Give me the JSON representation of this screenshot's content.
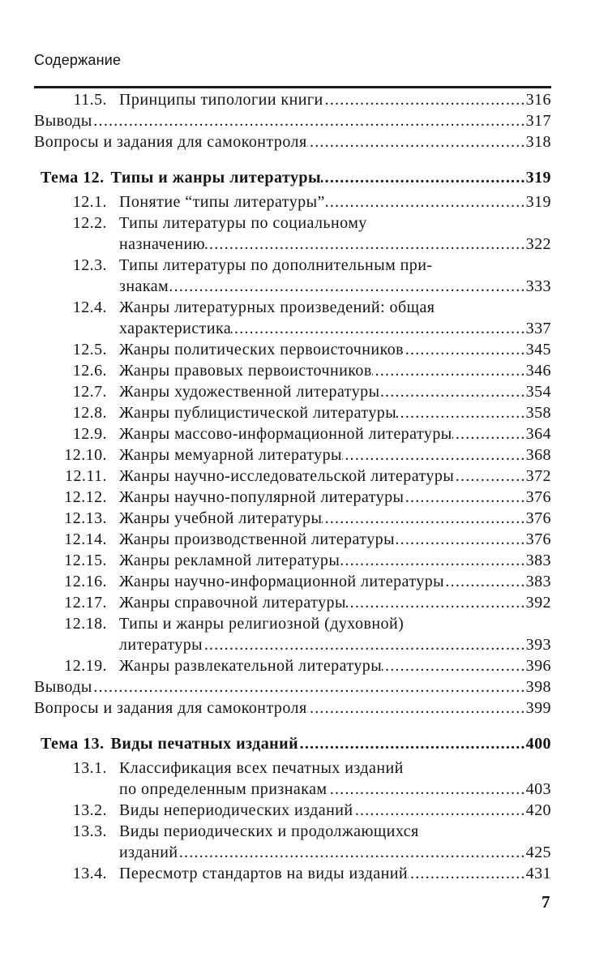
{
  "header": {
    "title": "Содержание"
  },
  "entries": [
    {
      "type": "section",
      "num": "11.5.",
      "lines": [
        "Принципы типологии книги"
      ],
      "page": "316"
    },
    {
      "type": "plain",
      "num": "",
      "lines": [
        "Выводы"
      ],
      "page": "317"
    },
    {
      "type": "plain",
      "num": "",
      "lines": [
        "Вопросы и задания для самоконтроля"
      ],
      "page": "318"
    },
    {
      "type": "theme",
      "num": "Тема 12.",
      "lines": [
        "Типы и жанры литературы"
      ],
      "page": "319"
    },
    {
      "type": "section",
      "num": "12.1.",
      "lines": [
        "Понятие “типы литературы”"
      ],
      "page": "319"
    },
    {
      "type": "section",
      "num": "12.2.",
      "lines": [
        "Типы литературы по социальному",
        "назначению"
      ],
      "page": "322"
    },
    {
      "type": "section",
      "num": "12.3.",
      "lines": [
        "Типы литературы по дополнительным при-",
        "знакам"
      ],
      "page": "333"
    },
    {
      "type": "section",
      "num": "12.4.",
      "lines": [
        "Жанры литературных произведений: общая",
        "характеристика"
      ],
      "page": "337"
    },
    {
      "type": "section",
      "num": "12.5.",
      "lines": [
        "Жанры политических первоисточников"
      ],
      "page": "345"
    },
    {
      "type": "section",
      "num": "12.6.",
      "lines": [
        "Жанры правовых первоисточников"
      ],
      "page": "346"
    },
    {
      "type": "section",
      "num": "12.7.",
      "lines": [
        "Жанры художественной литературы"
      ],
      "page": "354"
    },
    {
      "type": "section",
      "num": "12.8.",
      "lines": [
        "Жанры публицистической литературы"
      ],
      "page": "358"
    },
    {
      "type": "section",
      "num": "12.9.",
      "lines": [
        "Жанры массово-информационной литературы"
      ],
      "page": "364"
    },
    {
      "type": "section",
      "num": "12.10.",
      "lines": [
        "Жанры мемуарной литературы"
      ],
      "page": "368"
    },
    {
      "type": "section",
      "num": "12.11.",
      "lines": [
        "Жанры научно-исследовательской литературы"
      ],
      "page": "372"
    },
    {
      "type": "section",
      "num": "12.12.",
      "lines": [
        "Жанры научно-популярной литературы"
      ],
      "page": "376"
    },
    {
      "type": "section",
      "num": "12.13.",
      "lines": [
        "Жанры учебной литературы"
      ],
      "page": "376"
    },
    {
      "type": "section",
      "num": "12.14.",
      "lines": [
        "Жанры производственной литературы"
      ],
      "page": "376"
    },
    {
      "type": "section",
      "num": "12.15.",
      "lines": [
        "Жанры рекламной литературы"
      ],
      "page": "383"
    },
    {
      "type": "section",
      "num": "12.16.",
      "lines": [
        "Жанры научно-информационной литературы"
      ],
      "page": "383"
    },
    {
      "type": "section",
      "num": "12.17.",
      "lines": [
        "Жанры справочной литературы"
      ],
      "page": "392"
    },
    {
      "type": "section",
      "num": "12.18.",
      "lines": [
        "Типы и жанры религиозной (духовной)",
        "литературы"
      ],
      "page": "393"
    },
    {
      "type": "section",
      "num": "12.19.",
      "lines": [
        "Жанры развлекательной литературы"
      ],
      "page": "396"
    },
    {
      "type": "plain",
      "num": "",
      "lines": [
        "Выводы"
      ],
      "page": "398"
    },
    {
      "type": "plain",
      "num": "",
      "lines": [
        "Вопросы и задания для самоконтроля"
      ],
      "page": "399"
    },
    {
      "type": "theme",
      "num": "Тема 13.",
      "lines": [
        "Виды печатных изданий"
      ],
      "page": "400"
    },
    {
      "type": "section",
      "num": "13.1.",
      "lines": [
        "Классификация всех печатных изданий",
        "по определенным признакам"
      ],
      "page": "403"
    },
    {
      "type": "section",
      "num": "13.2.",
      "lines": [
        "Виды непериодических изданий"
      ],
      "page": "420"
    },
    {
      "type": "section",
      "num": "13.3.",
      "lines": [
        "Виды периодических и продолжающихся",
        "изданий"
      ],
      "page": "425"
    },
    {
      "type": "section",
      "num": "13.4.",
      "lines": [
        "Пересмотр стандартов на виды изданий"
      ],
      "page": "431"
    }
  ],
  "footer": {
    "page_number": "7"
  }
}
